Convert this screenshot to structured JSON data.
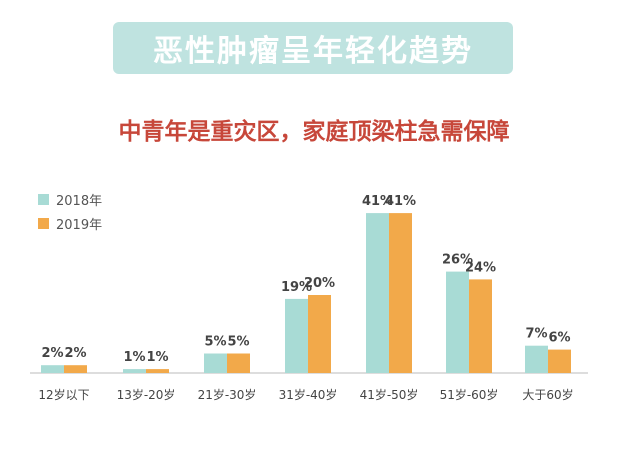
{
  "header": {
    "title": "恶性肿瘤呈年轻化趋势",
    "subtitle": "中青年是重灾区，家庭顶梁柱急需保障"
  },
  "colors": {
    "series_2018": "#a8dbd5",
    "series_2019": "#f2a94a",
    "title_bg": "#bfe3e0",
    "subtitle": "#c7473a"
  },
  "chart_data": {
    "type": "bar",
    "categories": [
      "12岁以下",
      "13岁-20岁",
      "21岁-30岁",
      "31岁-40岁",
      "41岁-50岁",
      "51岁-60岁",
      "大于60岁"
    ],
    "series": [
      {
        "name": "2018年",
        "values": [
          2,
          1,
          5,
          19,
          41,
          26,
          7
        ],
        "labels": [
          "2%",
          "1%",
          "5%",
          "19%",
          "41%",
          "26%",
          "7%"
        ]
      },
      {
        "name": "2019年",
        "values": [
          2,
          1,
          5,
          20,
          41,
          24,
          6
        ],
        "labels": [
          "2%",
          "1%",
          "5%",
          "20%",
          "41%",
          "24%",
          "6%"
        ]
      }
    ],
    "ylim": [
      0,
      45
    ],
    "legend_position": "top-left",
    "grid": false
  }
}
